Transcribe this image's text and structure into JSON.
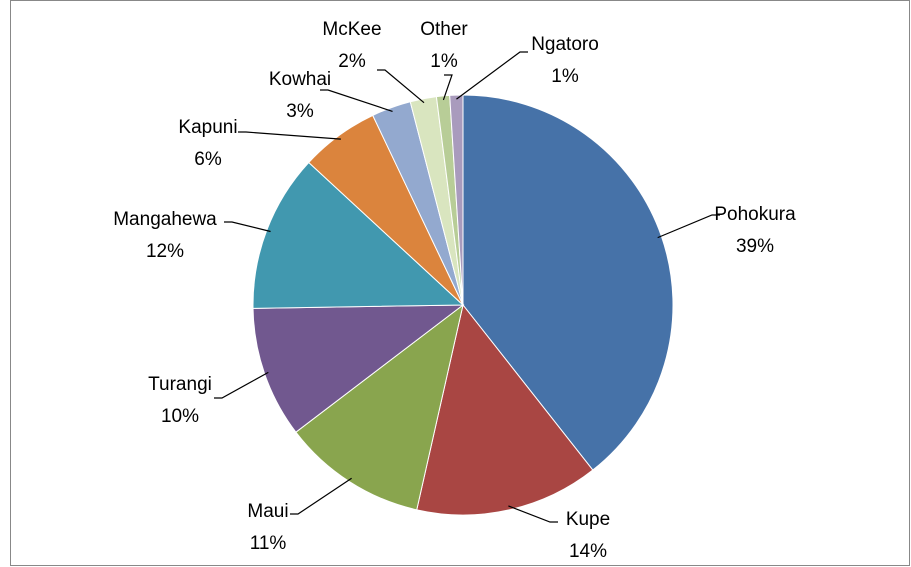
{
  "chart_data": {
    "type": "pie",
    "categories": [
      "Pohokura",
      "Kupe",
      "Maui",
      "Turangi",
      "Mangahewa",
      "Kapuni",
      "Kowhai",
      "McKee",
      "Other",
      "Ngatoro"
    ],
    "values": [
      39,
      14,
      11,
      10,
      12,
      6,
      3,
      2,
      1,
      1
    ],
    "value_labels": [
      "39%",
      "14%",
      "11%",
      "10%",
      "12%",
      "6%",
      "3%",
      "2%",
      "1%",
      "1%"
    ],
    "colors": [
      "#4672a8",
      "#a94643",
      "#89a54e",
      "#71588f",
      "#4198af",
      "#db843d",
      "#93a9cf",
      "#d9e5bf",
      "#b8cd97",
      "#a99bbd"
    ]
  }
}
